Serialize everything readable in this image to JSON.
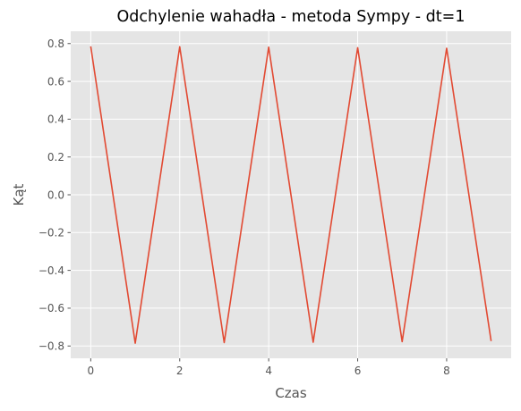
{
  "chart_data": {
    "type": "line",
    "title": "Odchylenie wahadła - metoda Sympy - dt=1",
    "xlabel": "Czas",
    "ylabel": "Kąt",
    "xlim": [
      -0.45,
      9.45
    ],
    "ylim": [
      -0.865,
      0.865
    ],
    "x_ticks": [
      0,
      2,
      4,
      6,
      8
    ],
    "y_ticks": [
      -0.8,
      -0.6,
      -0.4,
      -0.2,
      0.0,
      0.2,
      0.4,
      0.6,
      0.8
    ],
    "x_tick_labels": [
      "0",
      "2",
      "4",
      "6",
      "8"
    ],
    "y_tick_labels": [
      "−0.8",
      "−0.6",
      "−0.4",
      "−0.2",
      "0.0",
      "0.2",
      "0.4",
      "0.6",
      "0.8"
    ],
    "grid": true,
    "series": [
      {
        "color": "#e24a33",
        "x": [
          0,
          1,
          2,
          3,
          4,
          5,
          6,
          7,
          8,
          9
        ],
        "y": [
          0.785,
          -0.785,
          0.783,
          -0.782,
          0.781,
          -0.78,
          0.778,
          -0.777,
          0.775,
          -0.774
        ]
      }
    ],
    "background_color": "#e5e5e5",
    "grid_color": "#ffffff"
  }
}
